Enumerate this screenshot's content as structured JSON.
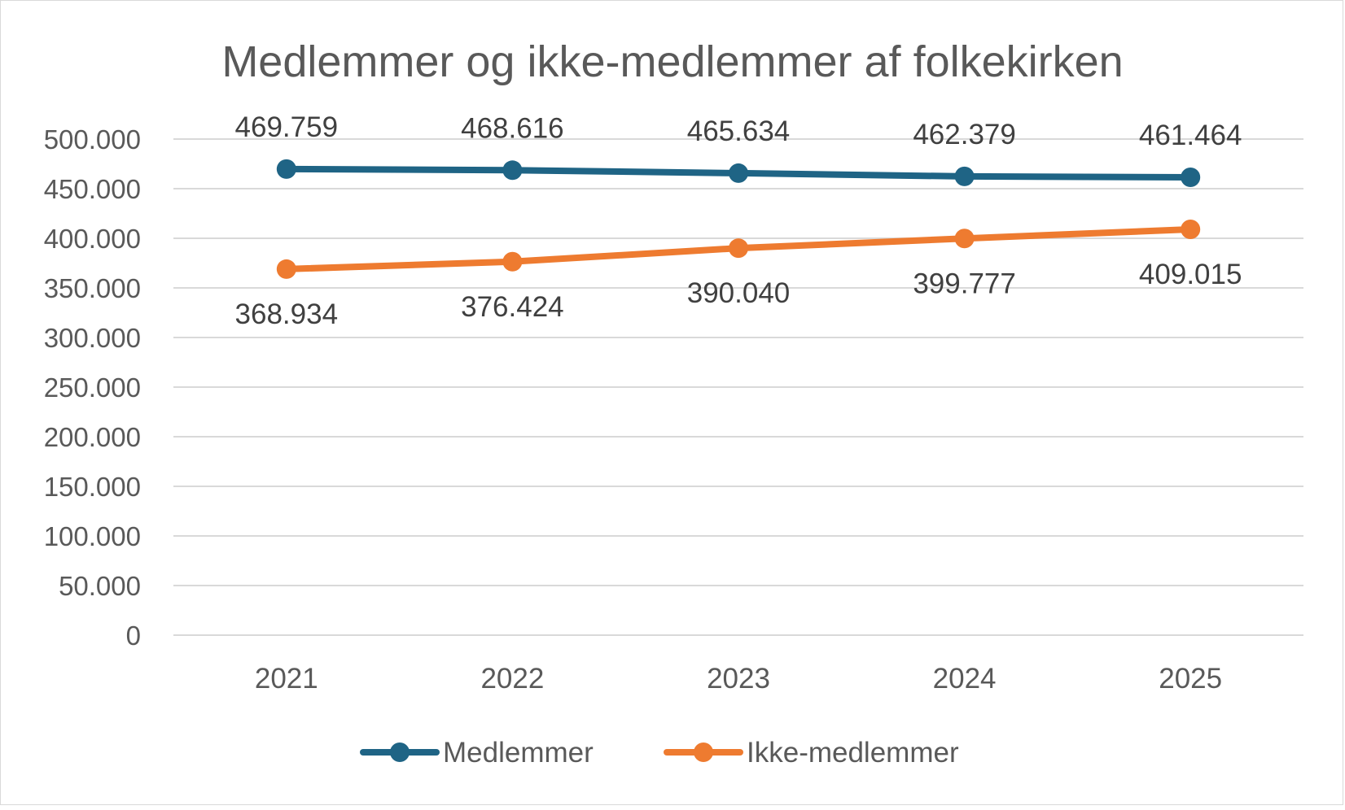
{
  "chart_data": {
    "type": "line",
    "title": "Medlemmer og ikke-medlemmer af folkekirken",
    "categories": [
      "2021",
      "2022",
      "2023",
      "2024",
      "2025"
    ],
    "series": [
      {
        "name": "Medlemmer",
        "color": "#1f6485",
        "values": [
          469759,
          468616,
          465634,
          462379,
          461464
        ],
        "labels": [
          "469.759",
          "468.616",
          "465.634",
          "462.379",
          "461.464"
        ],
        "label_position": "above"
      },
      {
        "name": "Ikke-medlemmer",
        "color": "#ee7b30",
        "values": [
          368934,
          376424,
          390040,
          399777,
          409015
        ],
        "labels": [
          "368.934",
          "376.424",
          "390.040",
          "399.777",
          "409.015"
        ],
        "label_position": "below"
      }
    ],
    "ylim": [
      0,
      500000
    ],
    "yticks": [
      0,
      50000,
      100000,
      150000,
      200000,
      250000,
      300000,
      350000,
      400000,
      450000,
      500000
    ],
    "ytick_labels": [
      "0",
      "50.000",
      "100.000",
      "150.000",
      "200.000",
      "250.000",
      "300.000",
      "350.000",
      "400.000",
      "450.000",
      "500.000"
    ],
    "xlabel": "",
    "ylabel": "",
    "grid": true,
    "legend_position": "bottom"
  }
}
